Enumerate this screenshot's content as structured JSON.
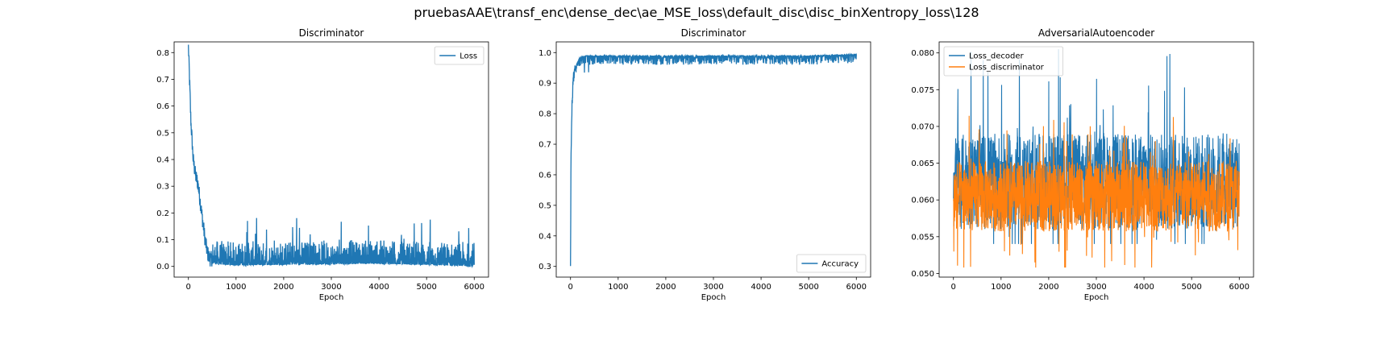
{
  "figure": {
    "suptitle": "pruebasAAE\\transf_enc\\dense_dec\\ae_MSE_loss\\default_disc\\disc_binXentropy_loss\\128"
  },
  "colors": {
    "blue": "#1f77b4",
    "orange": "#ff7f0e"
  },
  "chart_data": [
    {
      "type": "line",
      "title": "Discriminator",
      "xlabel": "Epoch",
      "ylabel": "",
      "xlim": [
        -300,
        6300
      ],
      "ylim": [
        -0.04,
        0.84
      ],
      "xticks": [
        0,
        1000,
        2000,
        3000,
        4000,
        5000,
        6000
      ],
      "yticks": [
        0.0,
        0.1,
        0.2,
        0.3,
        0.4,
        0.5,
        0.6,
        0.7,
        0.8
      ],
      "legend": "upper right",
      "series": [
        {
          "name": "Loss",
          "color": "#1f77b4",
          "x": [
            0,
            20,
            50,
            100,
            150,
            200,
            250,
            300,
            350,
            400,
            450,
            500,
            600,
            800,
            1000,
            1500,
            2000,
            2500,
            3000,
            3500,
            4000,
            4500,
            5000,
            5500,
            6000
          ],
          "y": [
            0.82,
            0.72,
            0.55,
            0.4,
            0.34,
            0.31,
            0.24,
            0.17,
            0.1,
            0.05,
            0.03,
            0.025,
            0.02,
            0.018,
            0.016,
            0.017,
            0.018,
            0.02,
            0.02,
            0.022,
            0.022,
            0.02,
            0.018,
            0.015,
            0.012
          ],
          "noise_peak": 0.18
        }
      ]
    },
    {
      "type": "line",
      "title": "Discriminator",
      "xlabel": "Epoch",
      "ylabel": "",
      "xlim": [
        -300,
        6300
      ],
      "ylim": [
        0.265,
        1.035
      ],
      "xticks": [
        0,
        1000,
        2000,
        3000,
        4000,
        5000,
        6000
      ],
      "yticks": [
        0.3,
        0.4,
        0.5,
        0.6,
        0.7,
        0.8,
        0.9,
        1.0
      ],
      "legend": "lower right",
      "series": [
        {
          "name": "Accuracy",
          "color": "#1f77b4",
          "x": [
            0,
            10,
            30,
            60,
            100,
            150,
            200,
            300,
            500,
            1000,
            2000,
            3000,
            4000,
            5000,
            6000
          ],
          "y": [
            0.29,
            0.66,
            0.82,
            0.92,
            0.95,
            0.97,
            0.985,
            0.99,
            0.99,
            0.99,
            0.99,
            0.99,
            0.99,
            0.99,
            0.995
          ],
          "noise_low": 0.02
        }
      ]
    },
    {
      "type": "line",
      "title": "AdversarialAutoencoder",
      "xlabel": "Epoch",
      "ylabel": "",
      "xlim": [
        -300,
        6300
      ],
      "ylim": [
        0.0495,
        0.0815
      ],
      "xticks": [
        0,
        1000,
        2000,
        3000,
        4000,
        5000,
        6000
      ],
      "yticks": [
        0.05,
        0.055,
        0.06,
        0.065,
        0.07,
        0.075,
        0.08
      ],
      "legend": "upper left",
      "series": [
        {
          "name": "Loss_decoder",
          "color": "#1f77b4",
          "center": 0.0625,
          "spread": 0.0065,
          "max": 0.0807,
          "min": 0.054
        },
        {
          "name": "Loss_discriminator",
          "color": "#ff7f0e",
          "center": 0.0605,
          "spread": 0.0048,
          "max": 0.0718,
          "min": 0.0508
        }
      ]
    }
  ]
}
